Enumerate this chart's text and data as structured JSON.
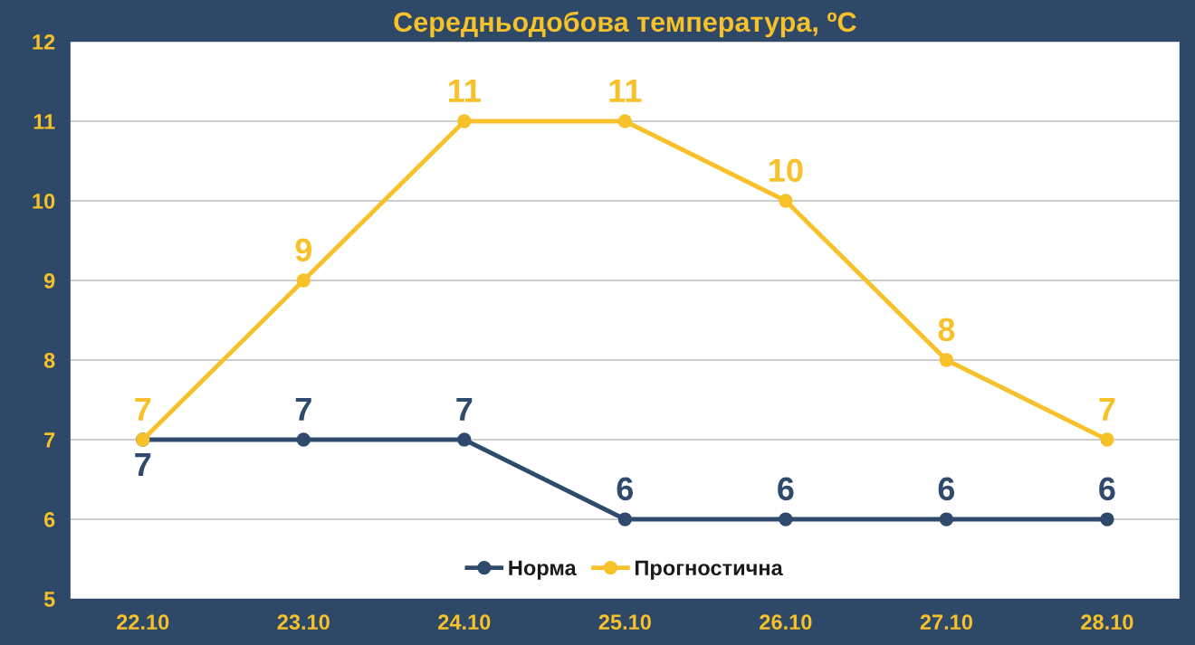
{
  "chart_data": {
    "type": "line",
    "title": "Середньодобова температура, ºС",
    "categories": [
      "22.10",
      "23.10",
      "24.10",
      "25.10",
      "26.10",
      "27.10",
      "28.10"
    ],
    "series": [
      {
        "name": "Норма",
        "color": "#2f4a6c",
        "values": [
          7,
          7,
          7,
          6,
          6,
          6,
          6
        ]
      },
      {
        "name": "Прогностична",
        "color": "#f7c12a",
        "values": [
          7,
          9,
          11,
          11,
          10,
          8,
          7
        ]
      }
    ],
    "ylim": [
      5,
      12
    ],
    "yticks": [
      5,
      6,
      7,
      8,
      9,
      10,
      11,
      12
    ],
    "grid": "y",
    "legend": "bottom",
    "marker": "circle",
    "line_style": "solid",
    "data_labels": true
  }
}
